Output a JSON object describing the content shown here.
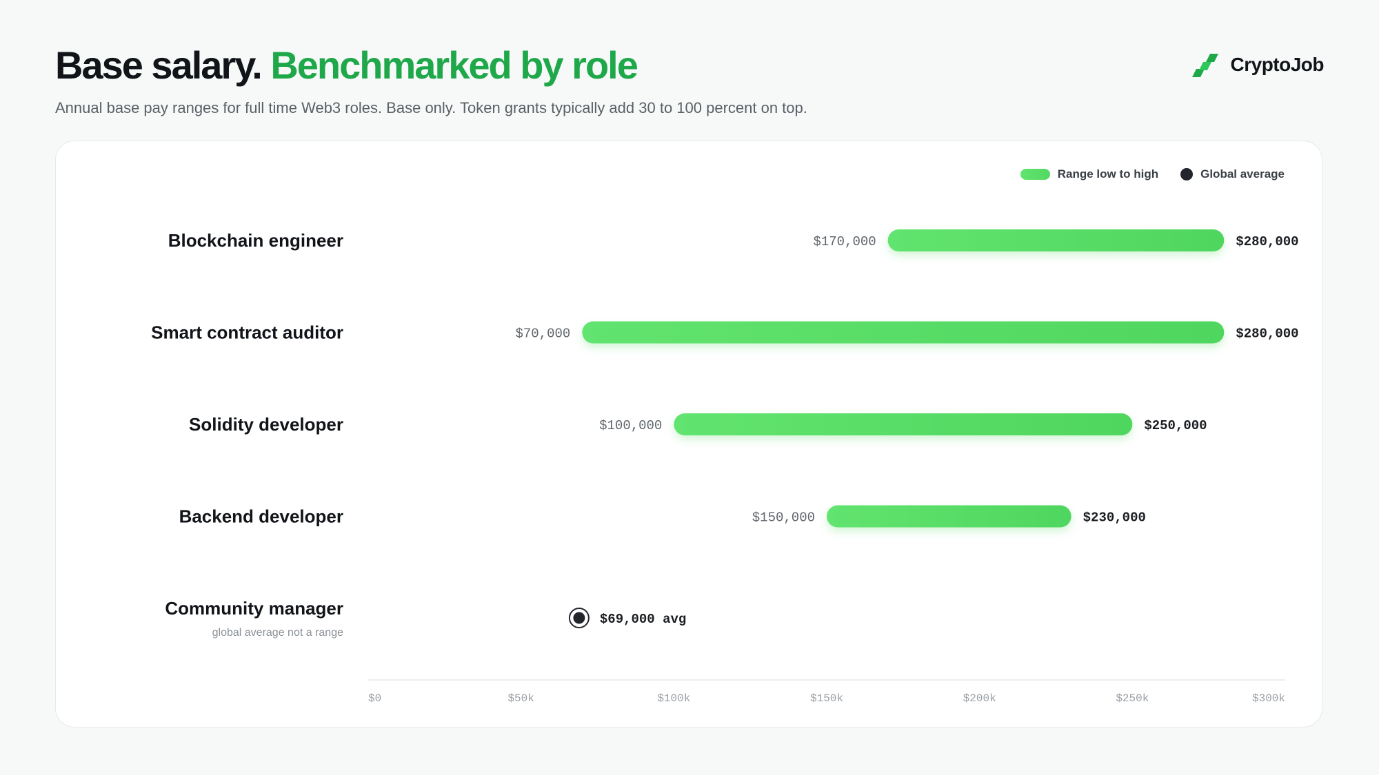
{
  "header": {
    "title_main": "Base salary.",
    "title_accent": "Benchmarked by role",
    "subtitle": "Annual base pay ranges for full time Web3 roles. Base only. Token grants typically add 30 to 100 percent on top."
  },
  "brand": {
    "name": "CryptoJob",
    "icon": "cryptojob-logo-icon"
  },
  "colors": {
    "accent": "#1fa84a",
    "bar_start": "#62e46f",
    "bar_end": "#4fd65f",
    "avg_dot": "#22252b"
  },
  "legend": {
    "range_label": "Range low to high",
    "avg_label": "Global average"
  },
  "chart_data": {
    "type": "bar",
    "orientation": "horizontal-range",
    "categories": [
      "Blockchain engineer",
      "Smart contract auditor",
      "Solidity developer",
      "Backend developer",
      "Community manager"
    ],
    "rows": [
      {
        "role": "Blockchain engineer",
        "low": 170000,
        "high": 280000,
        "low_label": "$170,000",
        "high_label": "$280,000"
      },
      {
        "role": "Smart contract auditor",
        "low": 70000,
        "high": 280000,
        "low_label": "$70,000",
        "high_label": "$280,000"
      },
      {
        "role": "Solidity developer",
        "low": 100000,
        "high": 250000,
        "low_label": "$100,000",
        "high_label": "$250,000"
      },
      {
        "role": "Backend developer",
        "low": 150000,
        "high": 230000,
        "low_label": "$150,000",
        "high_label": "$230,000"
      },
      {
        "role": "Community manager",
        "avg": 69000,
        "avg_label": "$69,000 avg",
        "note": "global average not a range"
      }
    ],
    "xlim": [
      0,
      300000
    ],
    "xticks": [
      0,
      50000,
      100000,
      150000,
      200000,
      250000,
      300000
    ],
    "xtick_labels": [
      "$0",
      "$50k",
      "$100k",
      "$150k",
      "$200k",
      "$250k",
      "$300k"
    ],
    "legend_position": "top-right",
    "grid": false
  }
}
